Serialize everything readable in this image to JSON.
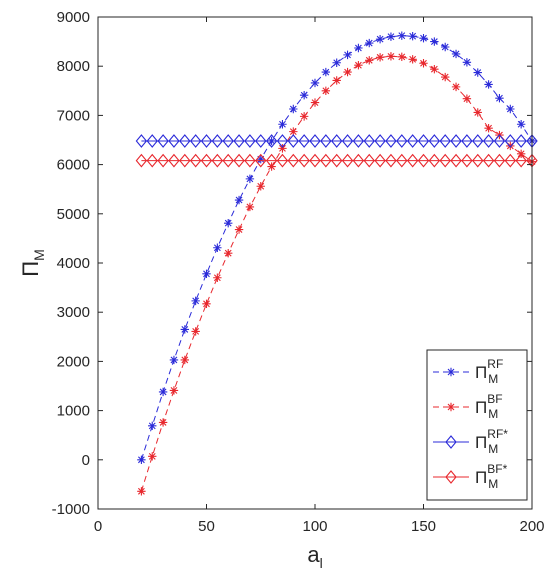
{
  "chart_data": {
    "type": "line",
    "xlabel": {
      "main": "a",
      "sub": "l"
    },
    "ylabel": {
      "main": "Π",
      "sub": "M"
    },
    "xlim": [
      0,
      200
    ],
    "ylim": [
      -1000,
      9000
    ],
    "xticks": [
      0,
      50,
      100,
      150,
      200
    ],
    "yticks": [
      -1000,
      0,
      1000,
      2000,
      3000,
      4000,
      5000,
      6000,
      7000,
      8000,
      9000
    ],
    "grid": false,
    "legend_position": "bottom-right",
    "x": [
      20,
      25,
      30,
      35,
      40,
      45,
      50,
      55,
      60,
      65,
      70,
      75,
      80,
      85,
      90,
      95,
      100,
      105,
      110,
      115,
      120,
      125,
      130,
      135,
      140,
      145,
      150,
      155,
      160,
      165,
      170,
      175,
      180,
      185,
      190,
      195,
      200
    ],
    "series": [
      {
        "name": {
          "main": "Π",
          "sub": "M",
          "sup": "RF"
        },
        "color": "#2b2bd9",
        "line_style": "dashed",
        "marker": "star",
        "values": [
          0,
          690,
          1380,
          2030,
          2650,
          3230,
          3780,
          4310,
          4810,
          5280,
          5710,
          6110,
          6480,
          6820,
          7130,
          7410,
          7660,
          7880,
          8070,
          8230,
          8370,
          8470,
          8550,
          8600,
          8620,
          8610,
          8570,
          8500,
          8390,
          8250,
          8080,
          7870,
          7630,
          7350,
          7130,
          6820,
          6480
        ]
      },
      {
        "name": {
          "main": "Π",
          "sub": "M",
          "sup": "BF"
        },
        "color": "#e8282e",
        "line_style": "dashed",
        "marker": "star",
        "values": [
          -640,
          70,
          760,
          1410,
          2030,
          2610,
          3170,
          3700,
          4200,
          4680,
          5140,
          5560,
          5960,
          6330,
          6670,
          6980,
          7260,
          7500,
          7710,
          7880,
          8020,
          8120,
          8180,
          8200,
          8190,
          8140,
          8060,
          7940,
          7780,
          7580,
          7340,
          7060,
          6740,
          6600,
          6380,
          6220,
          6060
        ]
      },
      {
        "name": {
          "main": "Π",
          "sub": "M",
          "sup": "RF*"
        },
        "color": "#2b2bd9",
        "line_style": "solid",
        "marker": "diamond",
        "constant": 6480
      },
      {
        "name": {
          "main": "Π",
          "sub": "M",
          "sup": "BF*"
        },
        "color": "#e8282e",
        "line_style": "solid",
        "marker": "diamond",
        "constant": 6080
      }
    ]
  }
}
